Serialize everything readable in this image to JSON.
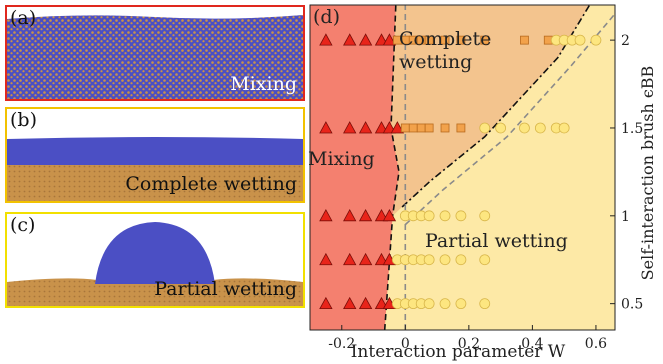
{
  "panels": [
    {
      "label": "(a)",
      "caption": "Mixing",
      "border_color": "#e0281e"
    },
    {
      "label": "(b)",
      "caption": "Complete wetting",
      "border_color": "#f2c200"
    },
    {
      "label": "(c)",
      "caption": "Partial wetting",
      "border_color": "#f2e000"
    }
  ],
  "colors": {
    "polymer_blue": "#4b4fc4",
    "brush_orange": "#c9924a",
    "mixing_region": "#f4806f",
    "complete_region": "#f3c48e",
    "partial_region": "#fde9a6",
    "triangle_fill": "#e8241a",
    "square_fill": "#f2a24b",
    "circle_fill": "#fde680"
  },
  "chart_data": {
    "type": "scatter",
    "panel_label": "(d)",
    "xlabel": "Interaction parameter W",
    "ylabel": "Self-interaction brush ϵBB",
    "xlim": [
      -0.3,
      0.66
    ],
    "ylim": [
      0.35,
      2.2
    ],
    "xticks": [
      "-0.2",
      "0",
      "0.2",
      "0.4",
      "0.6"
    ],
    "xtick_values": [
      -0.2,
      0,
      0.2,
      0.4,
      0.6
    ],
    "yticks": [
      "0.5",
      "1",
      "1.5",
      "2"
    ],
    "ytick_values": [
      0.5,
      1,
      1.5,
      2
    ],
    "region_labels": [
      "Mixing",
      "Complete wetting",
      "Partial wetting"
    ],
    "series": [
      {
        "marker": "triangle",
        "points": [
          [
            -0.25,
            2
          ],
          [
            -0.175,
            2
          ],
          [
            -0.125,
            2
          ],
          [
            -0.075,
            2
          ],
          [
            -0.05,
            2
          ],
          [
            -0.25,
            1.5
          ],
          [
            -0.175,
            1.5
          ],
          [
            -0.125,
            1.5
          ],
          [
            -0.075,
            1.5
          ],
          [
            -0.05,
            1.5
          ],
          [
            -0.025,
            1.5
          ],
          [
            -0.25,
            1
          ],
          [
            -0.175,
            1
          ],
          [
            -0.125,
            1
          ],
          [
            -0.075,
            1
          ],
          [
            -0.05,
            1
          ],
          [
            -0.25,
            0.75
          ],
          [
            -0.175,
            0.75
          ],
          [
            -0.125,
            0.75
          ],
          [
            -0.075,
            0.75
          ],
          [
            -0.05,
            0.75
          ],
          [
            -0.25,
            0.5
          ],
          [
            -0.175,
            0.5
          ],
          [
            -0.125,
            0.5
          ],
          [
            -0.075,
            0.5
          ],
          [
            -0.05,
            0.5
          ]
        ]
      },
      {
        "marker": "square",
        "points": [
          [
            -0.025,
            2
          ],
          [
            0,
            2
          ],
          [
            0.025,
            2
          ],
          [
            0.05,
            2
          ],
          [
            0.075,
            2
          ],
          [
            0.125,
            2
          ],
          [
            0.175,
            2
          ],
          [
            0.25,
            2
          ],
          [
            0.375,
            2
          ],
          [
            0.45,
            2
          ],
          [
            0,
            1.5
          ],
          [
            0.025,
            1.5
          ],
          [
            0.05,
            1.5
          ],
          [
            0.075,
            1.5
          ],
          [
            0.125,
            1.5
          ],
          [
            0.175,
            1.5
          ]
        ]
      },
      {
        "marker": "circle",
        "points": [
          [
            0.475,
            2
          ],
          [
            0.5,
            2
          ],
          [
            0.525,
            2
          ],
          [
            0.55,
            2
          ],
          [
            0.6,
            2
          ],
          [
            0.25,
            1.5
          ],
          [
            0.3,
            1.5
          ],
          [
            0.375,
            1.5
          ],
          [
            0.425,
            1.5
          ],
          [
            0.475,
            1.5
          ],
          [
            0.5,
            1.5
          ],
          [
            0,
            1
          ],
          [
            0.025,
            1
          ],
          [
            0.05,
            1
          ],
          [
            0.075,
            1
          ],
          [
            0.125,
            1
          ],
          [
            0.175,
            1
          ],
          [
            0.25,
            1
          ],
          [
            -0.025,
            0.75
          ],
          [
            0,
            0.75
          ],
          [
            0.025,
            0.75
          ],
          [
            0.05,
            0.75
          ],
          [
            0.075,
            0.75
          ],
          [
            0.125,
            0.75
          ],
          [
            0.175,
            0.75
          ],
          [
            0.25,
            0.75
          ],
          [
            -0.025,
            0.5
          ],
          [
            0,
            0.5
          ],
          [
            0.025,
            0.5
          ],
          [
            0.05,
            0.5
          ],
          [
            0.075,
            0.5
          ],
          [
            0.125,
            0.5
          ],
          [
            0.175,
            0.5
          ],
          [
            0.25,
            0.5
          ]
        ]
      }
    ],
    "boundaries": [
      {
        "style": "dashed-black",
        "points": [
          [
            -0.065,
            0.35
          ],
          [
            -0.04,
            1
          ],
          [
            -0.02,
            1.25
          ],
          [
            -0.045,
            1.5
          ],
          [
            -0.03,
            2.2
          ]
        ]
      },
      {
        "style": "dashdot-black",
        "points": [
          [
            -0.01,
            1.05
          ],
          [
            0.08,
            1.2
          ],
          [
            0.25,
            1.45
          ],
          [
            0.48,
            1.9
          ],
          [
            0.58,
            2.2
          ]
        ]
      },
      {
        "style": "dashed-gray",
        "points": [
          [
            0.0,
            0.35
          ],
          [
            0.0,
            2.2
          ]
        ]
      },
      {
        "style": "dashed-gray",
        "points": [
          [
            0.0,
            0.95
          ],
          [
            0.12,
            1.15
          ],
          [
            0.32,
            1.45
          ],
          [
            0.52,
            1.85
          ],
          [
            0.66,
            2.15
          ]
        ]
      }
    ]
  }
}
